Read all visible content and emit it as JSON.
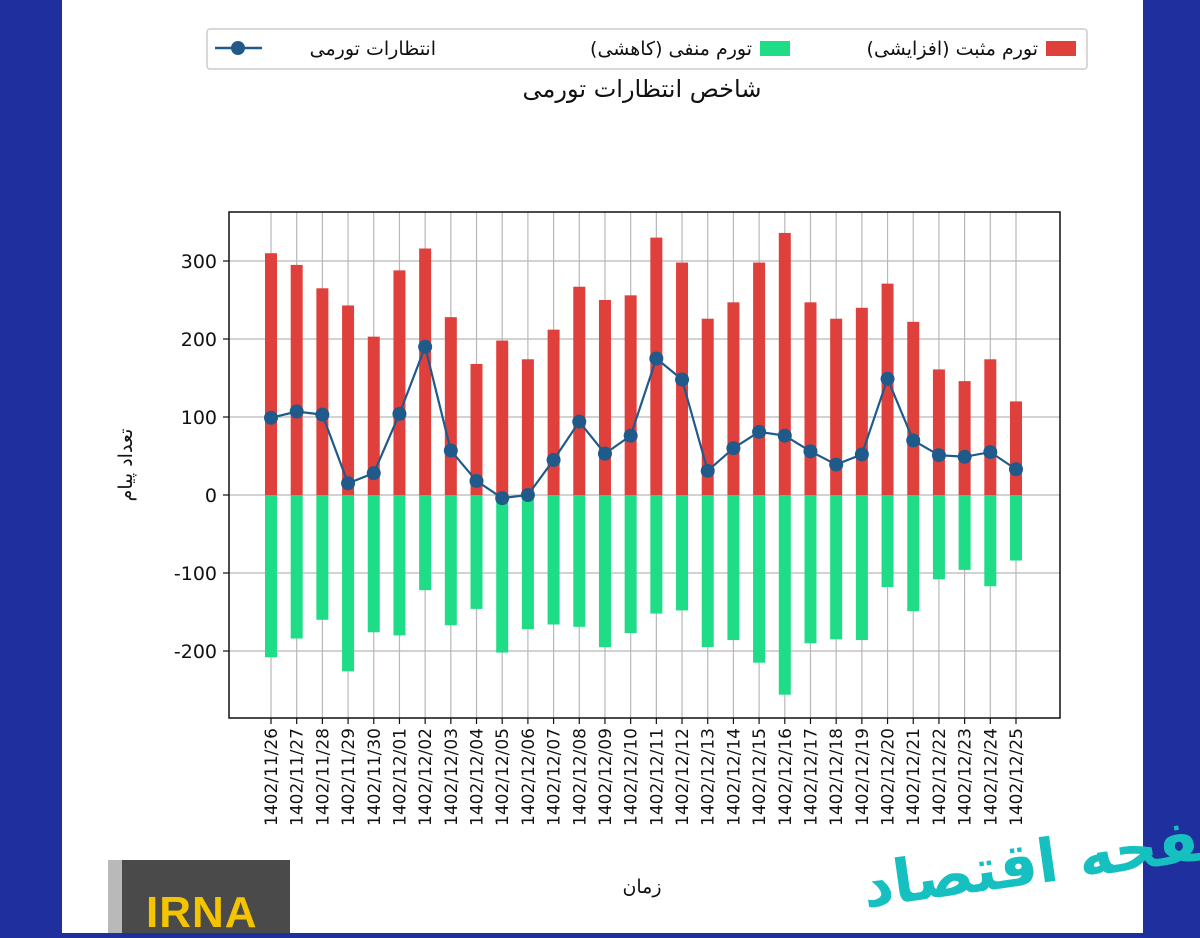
{
  "legend": {
    "positive_label": "تورم مثبت (افزایشی)",
    "negative_label": "تورم منفی (کاهشی)",
    "line_label": "انتظارات تورمی"
  },
  "chart_data": {
    "type": "bar",
    "title": "شاخص انتظارات تورمی",
    "xlabel": "زمان",
    "ylabel": "تعداد پیام",
    "ylim": [
      -290,
      360
    ],
    "yticks": [
      -200,
      -100,
      0,
      100,
      200,
      300
    ],
    "grid": true,
    "legend_position": "top",
    "categories": [
      "1402/11/26",
      "1402/11/27",
      "1402/11/28",
      "1402/11/29",
      "1402/11/30",
      "1402/12/01",
      "1402/12/02",
      "1402/12/03",
      "1402/12/04",
      "1402/12/05",
      "1402/12/06",
      "1402/12/07",
      "1402/12/08",
      "1402/12/09",
      "1402/12/10",
      "1402/12/11",
      "1402/12/12",
      "1402/12/13",
      "1402/12/14",
      "1402/12/15",
      "1402/12/16",
      "1402/12/17",
      "1402/12/18",
      "1402/12/19",
      "1402/12/20",
      "1402/12/21",
      "1402/12/22",
      "1402/12/23",
      "1402/12/24",
      "1402/12/25"
    ],
    "series": [
      {
        "name": "تورم مثبت (افزایشی)",
        "kind": "bar",
        "color": "#e0403c",
        "values": [
          310,
          295,
          265,
          243,
          203,
          288,
          316,
          228,
          168,
          198,
          174,
          212,
          267,
          250,
          256,
          330,
          298,
          226,
          247,
          298,
          336,
          247,
          226,
          240,
          271,
          222,
          161,
          146,
          174,
          120
        ]
      },
      {
        "name": "تورم منفی (کاهشی)",
        "kind": "bar",
        "color": "#1fdc86",
        "values": [
          -208,
          -184,
          -160,
          -226,
          -176,
          -180,
          -122,
          -167,
          -146,
          -202,
          -172,
          -166,
          -169,
          -195,
          -177,
          -152,
          -148,
          -195,
          -186,
          -215,
          -256,
          -190,
          -185,
          -186,
          -118,
          -149,
          -108,
          -96,
          -117,
          -84
        ]
      },
      {
        "name": "انتظارات تورمی",
        "kind": "line",
        "color": "#1f5a8a",
        "values": [
          99,
          107,
          103,
          15,
          28,
          104,
          190,
          57,
          18,
          -4,
          0,
          45,
          94,
          53,
          76,
          175,
          148,
          31,
          60,
          81,
          76,
          56,
          39,
          52,
          149,
          70,
          51,
          49,
          55,
          33
        ]
      }
    ]
  },
  "logo": {
    "text": "IRNA"
  },
  "watermark": {
    "text": "صفحه اقتصاد"
  }
}
